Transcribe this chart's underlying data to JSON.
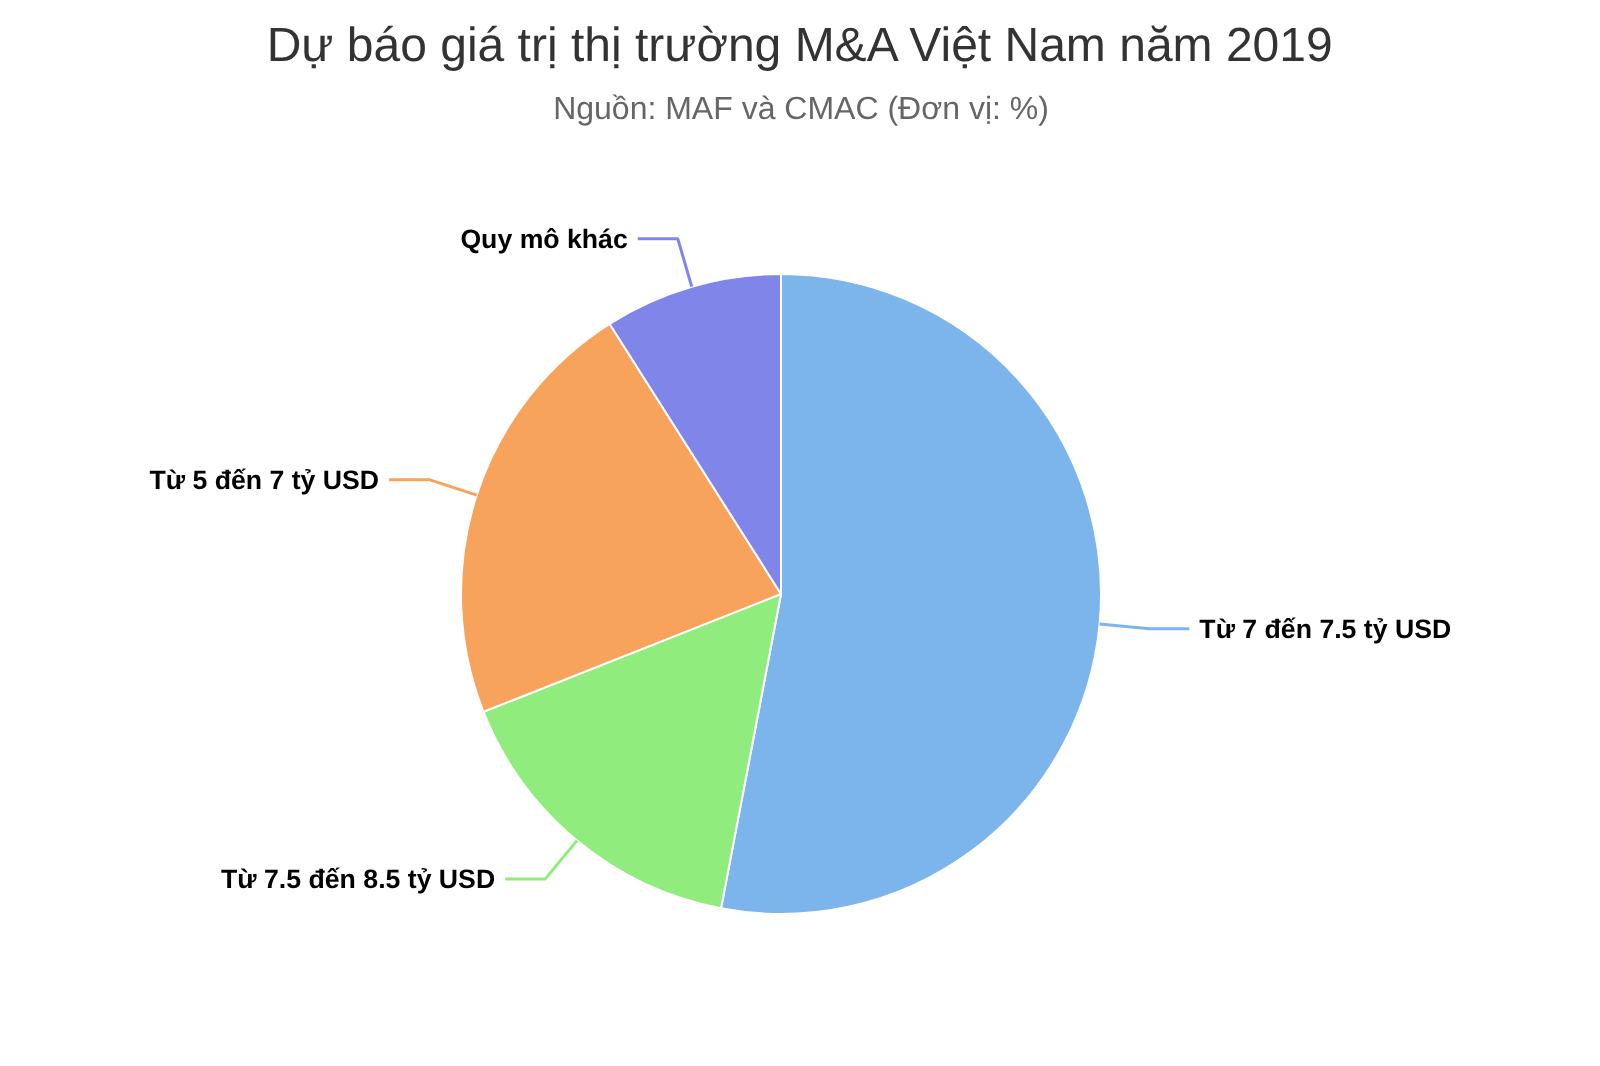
{
  "chart_data": {
    "type": "pie",
    "title": "Dự báo giá trị thị trường M&A Việt Nam năm 2019",
    "subtitle": "Nguồn: MAF và CMAC (Đơn vị: %)",
    "categories": [
      "Từ 7 đến 7.5 tỷ USD",
      "Từ 7.5 đến 8.5 tỷ USD",
      "Từ 5 đến 7 tỷ USD",
      "Quy mô khác"
    ],
    "values": [
      53,
      16,
      22,
      9
    ],
    "colors": [
      "#7cb5ec",
      "#90ed7d",
      "#f7a35c",
      "#8085e9"
    ]
  }
}
